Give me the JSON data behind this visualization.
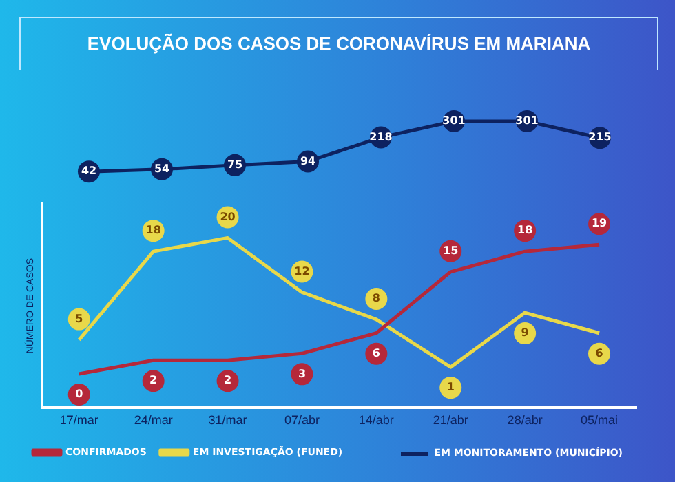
{
  "chart_data": [
    {
      "type": "line",
      "title": "EVOLUÇÃO DOS CASOS DE CORONAVÍRUS EM MARIANA",
      "categories": [
        null,
        null,
        null,
        null,
        null,
        null,
        null,
        null
      ],
      "series": [
        {
          "name": "EM MONITORAMENTO (MUNICÍPIO)",
          "color": "#0d2260",
          "values": [
            42,
            54,
            75,
            94,
            218,
            301,
            301,
            215
          ]
        }
      ],
      "tick_labels": false,
      "data_labels": true,
      "legend": "bottom right",
      "line_style": "solid",
      "marker": "circle"
    },
    {
      "type": "line",
      "ylabel": "NÚMERO DE CASOS",
      "categories": [
        "17/mar",
        "24/mar",
        "31/mar",
        "07/abr",
        "14/abr",
        "21/abr",
        "28/abr",
        "05/mai"
      ],
      "series": [
        {
          "name": "CONFIRMADOS",
          "color": "#b5283a",
          "values": [
            0,
            2,
            2,
            3,
            6,
            15,
            18,
            19
          ]
        },
        {
          "name": "EM INVESTIGAÇÃO (FUNED)",
          "color": "#e8d84a",
          "values": [
            5,
            18,
            20,
            12,
            8,
            1,
            9,
            6
          ]
        }
      ],
      "tick_labels": "x",
      "data_labels": true,
      "legend": "bottom left",
      "line_style": "solid"
    }
  ]
}
